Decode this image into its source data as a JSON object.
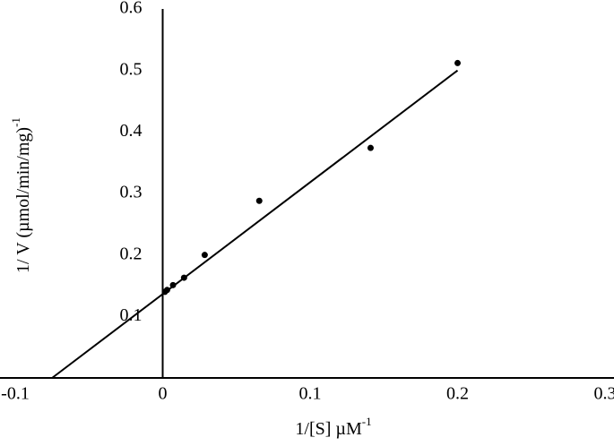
{
  "chart_data": {
    "type": "scatter",
    "xlabel": {
      "text": "1/[S]  µM",
      "sup": "-1"
    },
    "ylabel": {
      "text": "1/ V  (µmol/min/mg)",
      "sup": "-1"
    },
    "xlim": [
      -0.1,
      0.3
    ],
    "ylim": [
      0,
      0.6
    ],
    "xticks": [
      -0.1,
      0,
      0.1,
      0.2,
      0.3
    ],
    "yticks": [
      0.1,
      0.2,
      0.3,
      0.4,
      0.5,
      0.6
    ],
    "series": [
      {
        "color": "#000000",
        "marker": "dot",
        "x": [
          0.0015,
          0.003,
          0.007,
          0.0145,
          0.0285,
          0.0655,
          0.141,
          0.2
        ],
        "values": [
          0.14,
          0.143,
          0.151,
          0.163,
          0.2,
          0.288,
          0.374,
          0.512
        ]
      },
      {
        "color": "#000000",
        "marker": "line",
        "x": [
          -0.075,
          0.2
        ],
        "values": [
          0,
          0.5
        ]
      }
    ]
  }
}
